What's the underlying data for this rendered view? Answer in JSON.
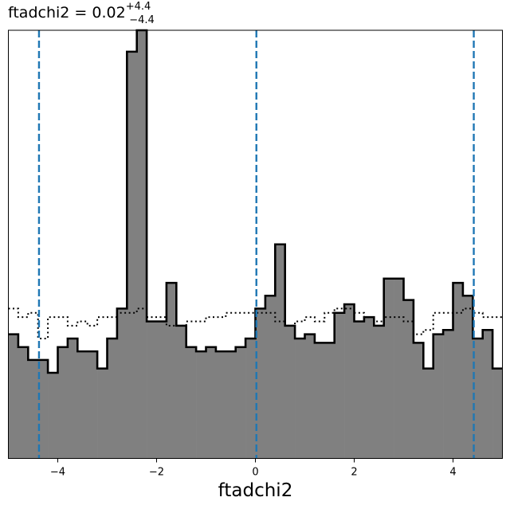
{
  "chart_data": {
    "type": "histogram",
    "title": {
      "parameter": "ftadchi2",
      "median": "0.02",
      "upper_error": "+4.4",
      "lower_error": "−4.4"
    },
    "xlabel": "ftadchi2",
    "xlim": [
      -5,
      5
    ],
    "ylim": [
      0,
      100
    ],
    "x_ticks": [
      -4,
      -2,
      0,
      2,
      4
    ],
    "x_tick_labels": [
      "−4",
      "−2",
      "0",
      "2",
      "4"
    ],
    "y_axis_labels_shown": false,
    "bin_edges_start": -5,
    "bin_width": 0.2,
    "series": [
      {
        "style": "filled",
        "fill": "#808080",
        "edge": "#000000",
        "values": [
          29,
          26,
          23,
          23,
          20,
          26,
          28,
          25,
          25,
          21,
          28,
          35,
          95,
          100,
          32,
          32,
          41,
          31,
          26,
          25,
          26,
          25,
          25,
          26,
          28,
          35,
          38,
          50,
          31,
          28,
          29,
          27,
          27,
          34,
          36,
          32,
          33,
          31,
          42,
          42,
          37,
          27,
          21,
          29,
          30,
          41,
          38,
          28,
          30,
          21
        ]
      },
      {
        "style": "step-dotted",
        "edge": "#000000",
        "values": [
          35,
          33,
          34,
          28,
          33,
          33,
          31,
          32,
          31,
          33,
          33,
          34,
          34,
          35,
          33,
          33,
          31,
          31,
          32,
          32,
          33,
          33,
          34,
          34,
          34,
          34,
          34,
          32,
          31,
          32,
          33,
          32,
          34,
          35,
          35,
          34,
          33,
          32,
          33,
          33,
          32,
          29,
          30,
          34,
          34,
          34,
          35,
          34,
          33,
          33
        ]
      }
    ],
    "vlines": [
      -4.38,
      0.02,
      4.42
    ],
    "vline_color": "#1f77b4",
    "grid": false
  }
}
